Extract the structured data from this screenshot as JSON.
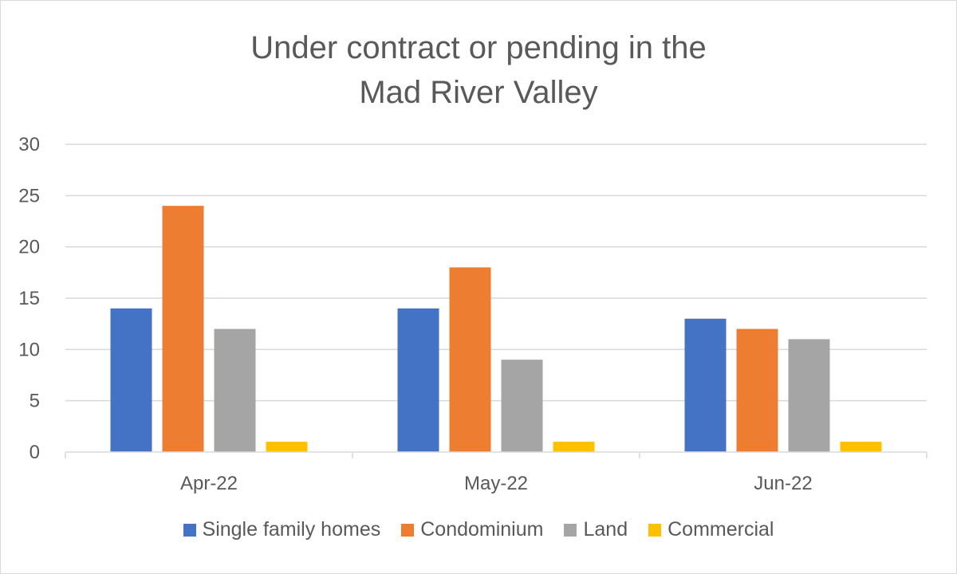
{
  "chart_data": {
    "type": "bar",
    "title_lines": [
      "Under contract or pending in the",
      "Mad River Valley"
    ],
    "categories": [
      "Apr-22",
      "May-22",
      "Jun-22"
    ],
    "series": [
      {
        "name": "Single family homes",
        "values": [
          14,
          14,
          13
        ],
        "color": "#4472C4"
      },
      {
        "name": "Condominium",
        "values": [
          24,
          18,
          12
        ],
        "color": "#ED7D31"
      },
      {
        "name": "Land",
        "values": [
          12,
          9,
          11
        ],
        "color": "#A5A5A5"
      },
      {
        "name": "Commercial",
        "values": [
          1,
          1,
          1
        ],
        "color": "#FFC000"
      }
    ],
    "ylim": [
      0,
      30
    ],
    "yticks": [
      0,
      5,
      10,
      15,
      20,
      25,
      30
    ],
    "grid": true,
    "legend_position": "bottom"
  }
}
